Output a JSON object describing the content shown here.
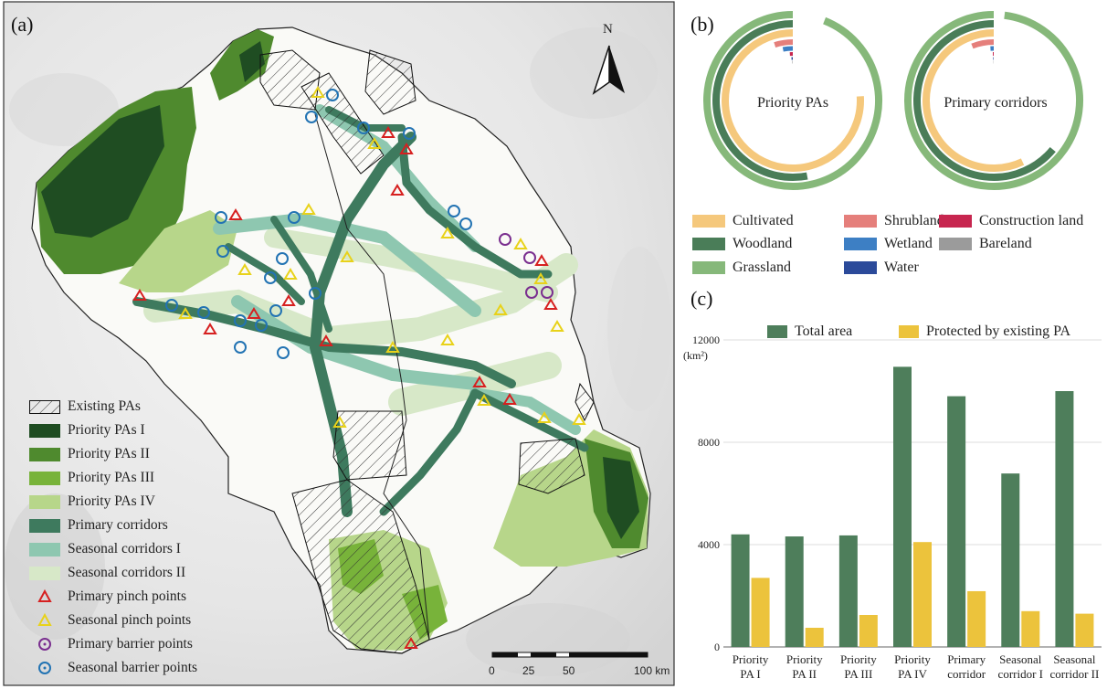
{
  "panels": {
    "a": "(a)",
    "b": "(b)",
    "c": "(c)"
  },
  "map": {
    "north_label": "N",
    "scale_ticks": [
      "0",
      "25",
      "50",
      "100 km"
    ],
    "legend": [
      {
        "label": "Existing PAs",
        "kind": "hatch"
      },
      {
        "label": "Priority PAs I",
        "kind": "fill",
        "color": "#1f4d22"
      },
      {
        "label": "Priority PAs II",
        "kind": "fill",
        "color": "#4f8a2e"
      },
      {
        "label": "Priority PAs III",
        "kind": "fill",
        "color": "#78b33a"
      },
      {
        "label": "Priority PAs IV",
        "kind": "fill",
        "color": "#b7d68a"
      },
      {
        "label": "Primary corridors",
        "kind": "fill",
        "color": "#3e7a5e"
      },
      {
        "label": "Seasonal corridors I",
        "kind": "fill",
        "color": "#8ec7b0"
      },
      {
        "label": "Seasonal corridors II",
        "kind": "fill",
        "color": "#d7e8c8"
      },
      {
        "label": "Primary pinch points",
        "kind": "tri",
        "color": "#d62020"
      },
      {
        "label": "Seasonal pinch points",
        "kind": "tri",
        "color": "#e8d21a"
      },
      {
        "label": "Primary barrier points",
        "kind": "ring",
        "color": "#7a2f8f"
      },
      {
        "label": "Seasonal barrier points",
        "kind": "ring",
        "color": "#2273b3"
      }
    ]
  },
  "chart_data": [
    {
      "type": "pie",
      "subtype": "radial-bar",
      "charts": [
        {
          "label": "Priority PAs",
          "values": {
            "Cultivated": 0.76,
            "Woodland": 0.53,
            "Grassland": 0.94,
            "Shrubland": 0.05,
            "Wetland": 0.03,
            "Construction land": 0.01,
            "Water": 0.005,
            "Bareland": 0.002
          }
        },
        {
          "label": "Primary corridors",
          "values": {
            "Cultivated": 0.57,
            "Woodland": 0.64,
            "Grassland": 0.98,
            "Shrubland": 0.06,
            "Wetland": 0.01,
            "Construction land": 0.003,
            "Water": 0.002,
            "Bareland": 0.001
          }
        }
      ],
      "legend": [
        {
          "name": "Cultivated",
          "color": "#f5c87c"
        },
        {
          "name": "Shrubland",
          "color": "#e57f7b"
        },
        {
          "name": "Construction land",
          "color": "#c7264f"
        },
        {
          "name": "Woodland",
          "color": "#4a7d58"
        },
        {
          "name": "Wetland",
          "color": "#3d7fc4"
        },
        {
          "name": "Bareland",
          "color": "#9b9b9b"
        },
        {
          "name": "Grassland",
          "color": "#86b87a"
        },
        {
          "name": "Water",
          "color": "#2b4a9a"
        }
      ]
    },
    {
      "type": "bar",
      "categories": [
        "Priority PA I",
        "Priority PA II",
        "Priority PA III",
        "Priority PA IV",
        "Primary corridor",
        "Seasonal corridor I",
        "Seasonal corridor II"
      ],
      "series": [
        {
          "name": "Total area",
          "color": "#4e7e5b",
          "values": [
            4400,
            4320,
            4360,
            10950,
            9800,
            6780,
            10000
          ]
        },
        {
          "name": "Protected by existing PA",
          "color": "#ecc33c",
          "values": [
            2700,
            750,
            1250,
            4100,
            2180,
            1400,
            1300
          ]
        }
      ],
      "yunit": "(km²)",
      "yticks": [
        "0",
        "4000",
        "8000",
        "12000"
      ],
      "ylim": [
        0,
        12000
      ],
      "grid": true,
      "legend_position": "top"
    }
  ]
}
